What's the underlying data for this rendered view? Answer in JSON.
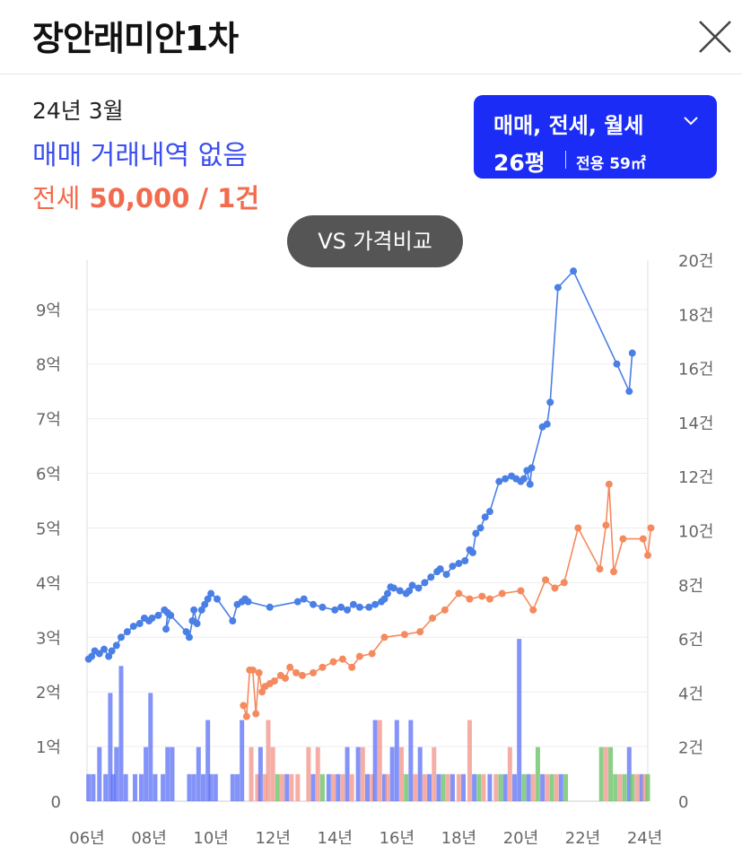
{
  "header": {
    "title": "장안래미안1차"
  },
  "info": {
    "date": "24년 3월",
    "trade_status": "매매 거래내역 없음",
    "jeonse_label": "전세",
    "jeonse_value": "50,000 / 1건"
  },
  "filter": {
    "types": "매매, 전세, 월세",
    "size": "26평",
    "area": "전용 59㎡",
    "chevron_icon": "chevron-down-icon"
  },
  "compare_button": {
    "label": "VS 가격비교"
  },
  "colors": {
    "sale": "#4a7fe6",
    "jeonse": "#f58a5e",
    "accent": "#1a2cf5",
    "sale_bar": "#5a6ff5",
    "jeonse_bar": "#f29a90",
    "rent_bar": "#6cc36a"
  },
  "chart_data": {
    "type": "line",
    "x_tick_labels": [
      "06년",
      "08년",
      "10년",
      "12년",
      "14년",
      "16년",
      "18년",
      "20년",
      "22년",
      "24년"
    ],
    "y_left_tick_labels": [
      "0",
      "1억",
      "2억",
      "3억",
      "4억",
      "5억",
      "6억",
      "7억",
      "8억",
      "9억"
    ],
    "y_right_tick_labels": [
      "0",
      "2건",
      "4건",
      "6건",
      "8건",
      "10건",
      "12건",
      "14건",
      "16건",
      "18건",
      "20건"
    ],
    "x_range": [
      2006.0,
      2024.1
    ],
    "y_left_range": [
      0,
      9.9
    ],
    "y_right_range": [
      0,
      20
    ],
    "y_left_unit": "억",
    "series": [
      {
        "kind": "sale",
        "points": [
          [
            2006.05,
            2.6
          ],
          [
            2006.15,
            2.65
          ],
          [
            2006.25,
            2.75
          ],
          [
            2006.4,
            2.7
          ],
          [
            2006.55,
            2.78
          ],
          [
            2006.7,
            2.65
          ],
          [
            2006.8,
            2.75
          ],
          [
            2006.95,
            2.85
          ],
          [
            2007.1,
            3.0
          ],
          [
            2007.3,
            3.1
          ],
          [
            2007.5,
            3.2
          ],
          [
            2007.7,
            3.25
          ],
          [
            2007.85,
            3.35
          ],
          [
            2008.0,
            3.3
          ],
          [
            2008.1,
            3.35
          ],
          [
            2008.3,
            3.4
          ],
          [
            2008.5,
            3.5
          ],
          [
            2008.6,
            3.45
          ],
          [
            2008.55,
            3.15
          ],
          [
            2008.7,
            3.4
          ],
          [
            2009.2,
            3.1
          ],
          [
            2009.3,
            3.0
          ],
          [
            2009.4,
            3.3
          ],
          [
            2009.45,
            3.5
          ],
          [
            2009.55,
            3.25
          ],
          [
            2009.7,
            3.5
          ],
          [
            2009.8,
            3.6
          ],
          [
            2009.9,
            3.7
          ],
          [
            2010.0,
            3.8
          ],
          [
            2010.2,
            3.7
          ],
          [
            2010.7,
            3.3
          ],
          [
            2010.85,
            3.6
          ],
          [
            2011.0,
            3.65
          ],
          [
            2011.1,
            3.7
          ],
          [
            2011.2,
            3.65
          ],
          [
            2011.9,
            3.55
          ],
          [
            2012.8,
            3.65
          ],
          [
            2013.0,
            3.7
          ],
          [
            2013.3,
            3.6
          ],
          [
            2013.6,
            3.55
          ],
          [
            2014.0,
            3.5
          ],
          [
            2014.2,
            3.55
          ],
          [
            2014.4,
            3.5
          ],
          [
            2014.6,
            3.6
          ],
          [
            2014.8,
            3.55
          ],
          [
            2015.1,
            3.55
          ],
          [
            2015.3,
            3.6
          ],
          [
            2015.5,
            3.65
          ],
          [
            2015.6,
            3.7
          ],
          [
            2015.7,
            3.8
          ],
          [
            2015.8,
            3.92
          ],
          [
            2015.9,
            3.9
          ],
          [
            2016.1,
            3.85
          ],
          [
            2016.3,
            3.8
          ],
          [
            2016.4,
            3.85
          ],
          [
            2016.5,
            3.95
          ],
          [
            2016.7,
            3.9
          ],
          [
            2016.9,
            4.0
          ],
          [
            2017.1,
            4.1
          ],
          [
            2017.3,
            4.2
          ],
          [
            2017.4,
            4.25
          ],
          [
            2017.6,
            4.15
          ],
          [
            2017.8,
            4.3
          ],
          [
            2018.0,
            4.35
          ],
          [
            2018.2,
            4.4
          ],
          [
            2018.35,
            4.6
          ],
          [
            2018.45,
            4.55
          ],
          [
            2018.55,
            4.9
          ],
          [
            2018.7,
            5.0
          ],
          [
            2018.85,
            5.2
          ],
          [
            2019.0,
            5.3
          ],
          [
            2019.3,
            5.85
          ],
          [
            2019.5,
            5.9
          ],
          [
            2019.7,
            5.95
          ],
          [
            2019.85,
            5.9
          ],
          [
            2020.0,
            5.85
          ],
          [
            2020.1,
            5.9
          ],
          [
            2020.2,
            6.05
          ],
          [
            2020.3,
            5.8
          ],
          [
            2020.35,
            6.1
          ],
          [
            2020.7,
            6.85
          ],
          [
            2020.85,
            6.9
          ],
          [
            2020.95,
            7.3
          ],
          [
            2021.2,
            9.4
          ],
          [
            2021.7,
            9.7
          ],
          [
            2023.1,
            8.0
          ],
          [
            2023.5,
            7.5
          ],
          [
            2023.6,
            8.2
          ]
        ]
      },
      {
        "kind": "jeonse",
        "points": [
          [
            2011.05,
            1.75
          ],
          [
            2011.15,
            1.55
          ],
          [
            2011.25,
            2.4
          ],
          [
            2011.35,
            2.4
          ],
          [
            2011.45,
            1.6
          ],
          [
            2011.55,
            2.35
          ],
          [
            2011.65,
            2.0
          ],
          [
            2011.75,
            2.1
          ],
          [
            2011.9,
            2.15
          ],
          [
            2012.05,
            2.2
          ],
          [
            2012.25,
            2.3
          ],
          [
            2012.4,
            2.25
          ],
          [
            2012.55,
            2.45
          ],
          [
            2012.75,
            2.35
          ],
          [
            2012.95,
            2.3
          ],
          [
            2013.3,
            2.35
          ],
          [
            2013.6,
            2.45
          ],
          [
            2013.95,
            2.55
          ],
          [
            2014.25,
            2.6
          ],
          [
            2014.55,
            2.45
          ],
          [
            2014.8,
            2.65
          ],
          [
            2015.2,
            2.7
          ],
          [
            2015.6,
            3.0
          ],
          [
            2016.25,
            3.05
          ],
          [
            2016.75,
            3.1
          ],
          [
            2017.15,
            3.35
          ],
          [
            2017.55,
            3.5
          ],
          [
            2018.0,
            3.8
          ],
          [
            2018.35,
            3.7
          ],
          [
            2018.75,
            3.75
          ],
          [
            2019.0,
            3.7
          ],
          [
            2019.4,
            3.8
          ],
          [
            2020.0,
            3.85
          ],
          [
            2020.4,
            3.5
          ],
          [
            2020.8,
            4.05
          ],
          [
            2021.1,
            3.9
          ],
          [
            2021.4,
            4.0
          ],
          [
            2021.85,
            5.0
          ],
          [
            2022.55,
            4.25
          ],
          [
            2022.75,
            5.05
          ],
          [
            2022.85,
            5.8
          ],
          [
            2023.0,
            4.2
          ],
          [
            2023.3,
            4.8
          ],
          [
            2023.95,
            4.8
          ],
          [
            2024.1,
            4.5
          ],
          [
            2024.2,
            5.0
          ]
        ]
      }
    ],
    "volume_bars": [
      {
        "kind": "sale",
        "x": 2006.05,
        "v": 1
      },
      {
        "kind": "sale",
        "x": 2006.2,
        "v": 1
      },
      {
        "kind": "sale",
        "x": 2006.4,
        "v": 2
      },
      {
        "kind": "sale",
        "x": 2006.6,
        "v": 1
      },
      {
        "kind": "sale",
        "x": 2006.75,
        "v": 4
      },
      {
        "kind": "sale",
        "x": 2006.85,
        "v": 1
      },
      {
        "kind": "sale",
        "x": 2006.95,
        "v": 2
      },
      {
        "kind": "sale",
        "x": 2007.1,
        "v": 5
      },
      {
        "kind": "sale",
        "x": 2007.25,
        "v": 1
      },
      {
        "kind": "sale",
        "x": 2007.55,
        "v": 1
      },
      {
        "kind": "sale",
        "x": 2007.75,
        "v": 1
      },
      {
        "kind": "sale",
        "x": 2007.9,
        "v": 2
      },
      {
        "kind": "sale",
        "x": 2008.05,
        "v": 4
      },
      {
        "kind": "sale",
        "x": 2008.2,
        "v": 1
      },
      {
        "kind": "sale",
        "x": 2008.45,
        "v": 1
      },
      {
        "kind": "sale",
        "x": 2008.6,
        "v": 2
      },
      {
        "kind": "sale",
        "x": 2008.75,
        "v": 2
      },
      {
        "kind": "sale",
        "x": 2009.3,
        "v": 1
      },
      {
        "kind": "sale",
        "x": 2009.45,
        "v": 1
      },
      {
        "kind": "sale",
        "x": 2009.6,
        "v": 2
      },
      {
        "kind": "sale",
        "x": 2009.75,
        "v": 1
      },
      {
        "kind": "sale",
        "x": 2009.9,
        "v": 3
      },
      {
        "kind": "sale",
        "x": 2010.0,
        "v": 1
      },
      {
        "kind": "sale",
        "x": 2010.15,
        "v": 1
      },
      {
        "kind": "sale",
        "x": 2010.7,
        "v": 1
      },
      {
        "kind": "sale",
        "x": 2010.85,
        "v": 1
      },
      {
        "kind": "sale",
        "x": 2011.0,
        "v": 3
      },
      {
        "kind": "jeonse",
        "x": 2011.3,
        "v": 2
      },
      {
        "kind": "jeonse",
        "x": 2011.5,
        "v": 1
      },
      {
        "kind": "sale",
        "x": 2011.6,
        "v": 2
      },
      {
        "kind": "jeonse",
        "x": 2011.75,
        "v": 1
      },
      {
        "kind": "jeonse",
        "x": 2011.85,
        "v": 3
      },
      {
        "kind": "jeonse",
        "x": 2012.0,
        "v": 2
      },
      {
        "kind": "rent",
        "x": 2012.15,
        "v": 1
      },
      {
        "kind": "jeonse",
        "x": 2012.3,
        "v": 1
      },
      {
        "kind": "sale",
        "x": 2012.45,
        "v": 1
      },
      {
        "kind": "jeonse",
        "x": 2012.6,
        "v": 1
      },
      {
        "kind": "jeonse",
        "x": 2012.8,
        "v": 1
      },
      {
        "kind": "jeonse",
        "x": 2013.15,
        "v": 2
      },
      {
        "kind": "sale",
        "x": 2013.3,
        "v": 1
      },
      {
        "kind": "jeonse",
        "x": 2013.45,
        "v": 2
      },
      {
        "kind": "rent",
        "x": 2013.6,
        "v": 1
      },
      {
        "kind": "sale",
        "x": 2013.8,
        "v": 1
      },
      {
        "kind": "jeonse",
        "x": 2013.95,
        "v": 1
      },
      {
        "kind": "sale",
        "x": 2014.1,
        "v": 1
      },
      {
        "kind": "jeonse",
        "x": 2014.25,
        "v": 1
      },
      {
        "kind": "sale",
        "x": 2014.4,
        "v": 2
      },
      {
        "kind": "jeonse",
        "x": 2014.55,
        "v": 1
      },
      {
        "kind": "sale",
        "x": 2014.75,
        "v": 2
      },
      {
        "kind": "jeonse",
        "x": 2014.9,
        "v": 2
      },
      {
        "kind": "sale",
        "x": 2015.05,
        "v": 1
      },
      {
        "kind": "jeonse",
        "x": 2015.2,
        "v": 1
      },
      {
        "kind": "sale",
        "x": 2015.3,
        "v": 3
      },
      {
        "kind": "jeonse",
        "x": 2015.45,
        "v": 3
      },
      {
        "kind": "sale",
        "x": 2015.6,
        "v": 1
      },
      {
        "kind": "jeonse",
        "x": 2015.7,
        "v": 1
      },
      {
        "kind": "sale",
        "x": 2015.85,
        "v": 2
      },
      {
        "kind": "sale",
        "x": 2016.0,
        "v": 3
      },
      {
        "kind": "jeonse",
        "x": 2016.15,
        "v": 2
      },
      {
        "kind": "rent",
        "x": 2016.3,
        "v": 1
      },
      {
        "kind": "sale",
        "x": 2016.45,
        "v": 3
      },
      {
        "kind": "jeonse",
        "x": 2016.6,
        "v": 1
      },
      {
        "kind": "sale",
        "x": 2016.75,
        "v": 2
      },
      {
        "kind": "jeonse",
        "x": 2016.9,
        "v": 1
      },
      {
        "kind": "sale",
        "x": 2017.05,
        "v": 1
      },
      {
        "kind": "jeonse",
        "x": 2017.2,
        "v": 2
      },
      {
        "kind": "sale",
        "x": 2017.35,
        "v": 1
      },
      {
        "kind": "rent",
        "x": 2017.5,
        "v": 1
      },
      {
        "kind": "jeonse",
        "x": 2017.65,
        "v": 1
      },
      {
        "kind": "sale",
        "x": 2017.8,
        "v": 1
      },
      {
        "kind": "jeonse",
        "x": 2018.0,
        "v": 1
      },
      {
        "kind": "sale",
        "x": 2018.15,
        "v": 1
      },
      {
        "kind": "jeonse",
        "x": 2018.35,
        "v": 3
      },
      {
        "kind": "sale",
        "x": 2018.5,
        "v": 1
      },
      {
        "kind": "rent",
        "x": 2018.65,
        "v": 1
      },
      {
        "kind": "jeonse",
        "x": 2018.8,
        "v": 1
      },
      {
        "kind": "sale",
        "x": 2019.0,
        "v": 1
      },
      {
        "kind": "jeonse",
        "x": 2019.2,
        "v": 1
      },
      {
        "kind": "rent",
        "x": 2019.35,
        "v": 1
      },
      {
        "kind": "sale",
        "x": 2019.5,
        "v": 1
      },
      {
        "kind": "jeonse",
        "x": 2019.65,
        "v": 2
      },
      {
        "kind": "sale",
        "x": 2019.8,
        "v": 1
      },
      {
        "kind": "sale",
        "x": 2019.95,
        "v": 6
      },
      {
        "kind": "rent",
        "x": 2020.1,
        "v": 1
      },
      {
        "kind": "sale",
        "x": 2020.25,
        "v": 1
      },
      {
        "kind": "jeonse",
        "x": 2020.4,
        "v": 1
      },
      {
        "kind": "rent",
        "x": 2020.55,
        "v": 2
      },
      {
        "kind": "sale",
        "x": 2020.7,
        "v": 1
      },
      {
        "kind": "jeonse",
        "x": 2020.85,
        "v": 1
      },
      {
        "kind": "rent",
        "x": 2021.0,
        "v": 1
      },
      {
        "kind": "jeonse",
        "x": 2021.15,
        "v": 1
      },
      {
        "kind": "sale",
        "x": 2021.3,
        "v": 1
      },
      {
        "kind": "rent",
        "x": 2021.45,
        "v": 1
      },
      {
        "kind": "rent",
        "x": 2022.6,
        "v": 2
      },
      {
        "kind": "jeonse",
        "x": 2022.75,
        "v": 2
      },
      {
        "kind": "rent",
        "x": 2022.9,
        "v": 2
      },
      {
        "kind": "rent",
        "x": 2023.05,
        "v": 1
      },
      {
        "kind": "jeonse",
        "x": 2023.2,
        "v": 1
      },
      {
        "kind": "rent",
        "x": 2023.35,
        "v": 1
      },
      {
        "kind": "sale",
        "x": 2023.5,
        "v": 2
      },
      {
        "kind": "rent",
        "x": 2023.6,
        "v": 1
      },
      {
        "kind": "jeonse",
        "x": 2023.75,
        "v": 1
      },
      {
        "kind": "sale",
        "x": 2023.9,
        "v": 1
      },
      {
        "kind": "jeonse",
        "x": 2024.0,
        "v": 1
      },
      {
        "kind": "rent",
        "x": 2024.1,
        "v": 1
      }
    ],
    "grid": true,
    "legend": "none"
  }
}
